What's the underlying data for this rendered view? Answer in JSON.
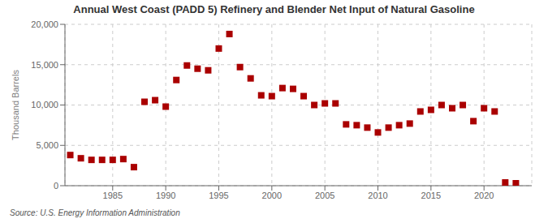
{
  "chart_data": {
    "type": "scatter",
    "title": "Annual West Coast (PADD 5) Refinery and Blender Net Input of Natural Gasoline",
    "ylabel": "Thousand Barrels",
    "annotation": "Source: U.S. Energy Information Administration",
    "x": [
      1981,
      1982,
      1983,
      1984,
      1985,
      1986,
      1987,
      1988,
      1989,
      1990,
      1991,
      1992,
      1993,
      1994,
      1995,
      1996,
      1997,
      1998,
      1999,
      2000,
      2001,
      2002,
      2003,
      2004,
      2005,
      2006,
      2007,
      2008,
      2009,
      2010,
      2011,
      2012,
      2013,
      2014,
      2015,
      2016,
      2017,
      2018,
      2019,
      2020,
      2021,
      2022,
      2023
    ],
    "values": [
      3800,
      3400,
      3200,
      3200,
      3200,
      3300,
      2300,
      10400,
      10600,
      9800,
      13100,
      14900,
      14500,
      14300,
      17000,
      18800,
      14700,
      13300,
      11200,
      11100,
      12100,
      12000,
      11100,
      10000,
      10200,
      10200,
      7600,
      7500,
      7200,
      6600,
      7200,
      7500,
      7700,
      9200,
      9400,
      10000,
      9600,
      10000,
      8000,
      9600,
      9200,
      400,
      300
    ],
    "color": "#aa0000",
    "marker": "square",
    "grid": true,
    "xlim": [
      1980.5,
      2024.5
    ],
    "xticks": [
      1985,
      1990,
      1995,
      2000,
      2005,
      2010,
      2015,
      2020
    ],
    "ylim": [
      0,
      20000
    ],
    "yticks": [
      0,
      {
        "value": 5000,
        "label": "5,000"
      },
      {
        "value": 10000,
        "label": "10,000"
      },
      {
        "value": 15000,
        "label": "15,000"
      },
      {
        "value": 20000,
        "label": "20,000"
      }
    ]
  }
}
